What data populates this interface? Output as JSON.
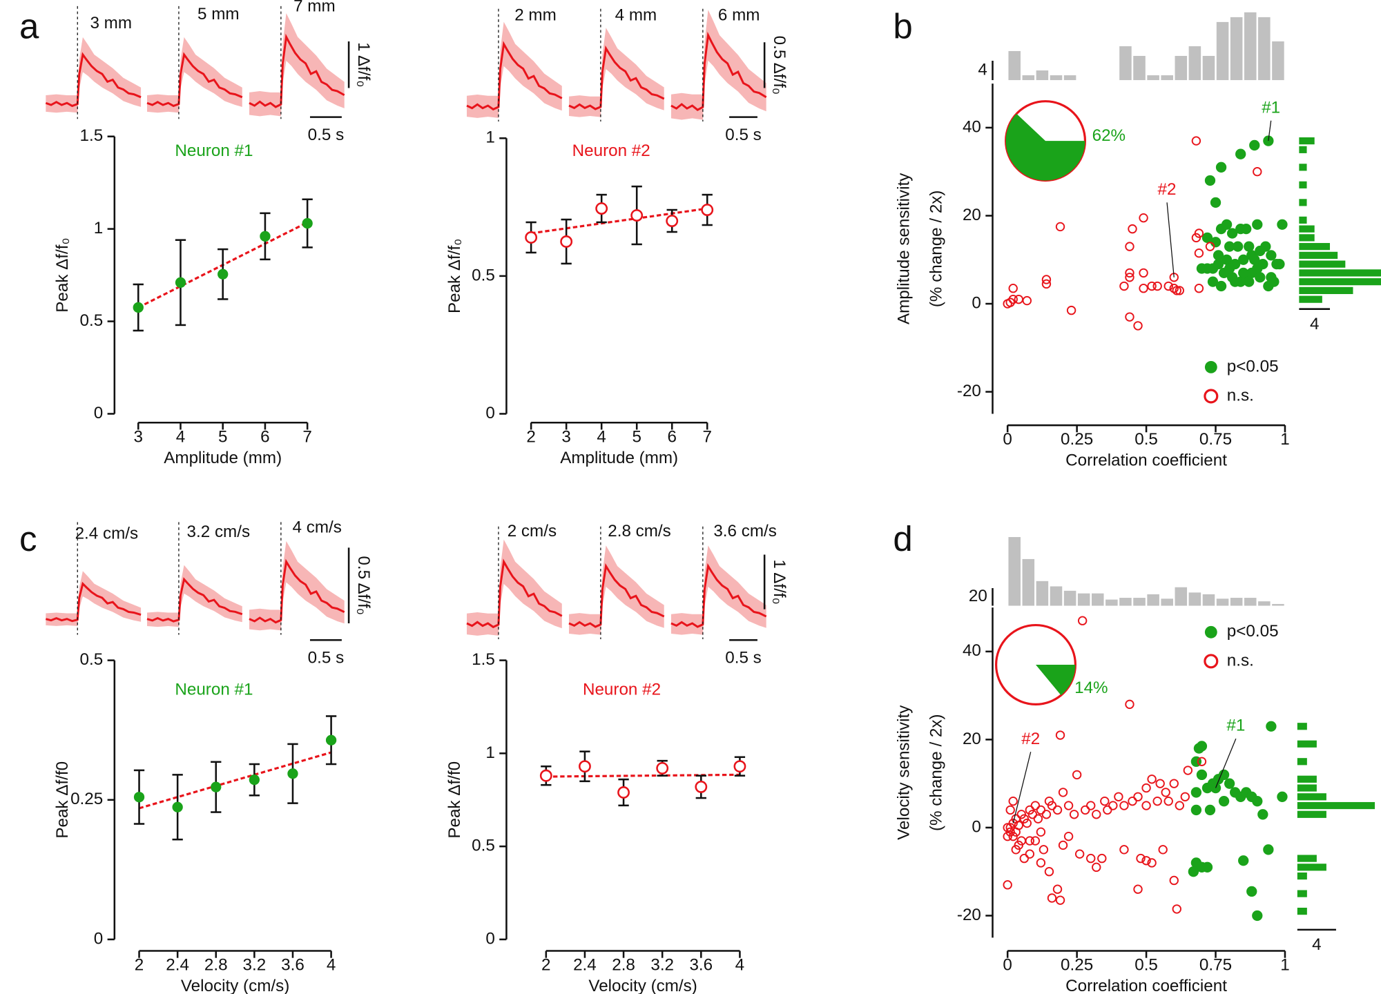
{
  "panel_labels": [
    "a",
    "b",
    "c",
    "d"
  ],
  "traces": [
    {
      "labels": [
        "3 mm",
        "5 mm",
        "7 mm"
      ],
      "amplitude_scale": "1 Δf/f₀",
      "time_scale": "0.5 s"
    },
    {
      "labels": [
        "2 mm",
        "4 mm",
        "6 mm"
      ],
      "amplitude_scale": "0.5 Δf/f₀",
      "time_scale": "0.5 s"
    },
    {
      "labels": [
        "2.4 cm/s",
        "3.2 cm/s",
        "4 cm/s"
      ],
      "amplitude_scale": "0.5 Δf/f₀",
      "time_scale": "0.5 s"
    },
    {
      "labels": [
        "2 cm/s",
        "2.8 cm/s",
        "3.6 cm/s"
      ],
      "amplitude_scale": "1 Δf/f₀",
      "time_scale": "0.5 s"
    }
  ],
  "chart_data": [
    {
      "type": "errorbar",
      "title": "Neuron #1",
      "title_color": "#1aa31a",
      "xlabel": "Amplitude (mm)",
      "ylabel": "Peak Δf/f₀",
      "x": [
        3,
        4,
        5,
        6,
        7
      ],
      "values": [
        0.575,
        0.71,
        0.755,
        0.96,
        1.03
      ],
      "errors": [
        0.125,
        0.23,
        0.135,
        0.125,
        0.13
      ],
      "color": "#1aa31a",
      "marker": "filled",
      "fit": {
        "x": [
          3,
          7
        ],
        "values": [
          0.575,
          1.035
        ],
        "color": "#e8141b"
      },
      "xlim": [
        3,
        7
      ],
      "xticks": [
        3,
        4,
        5,
        6,
        7
      ],
      "ylim": [
        0,
        1.5
      ],
      "yticks": [
        0,
        0.5,
        1,
        1.5
      ]
    },
    {
      "type": "errorbar",
      "title": "Neuron #2",
      "title_color": "#e8141b",
      "xlabel": "Amplitude (mm)",
      "ylabel": "Peak Δf/f₀",
      "x": [
        2,
        3,
        4,
        5,
        6,
        7
      ],
      "values": [
        0.64,
        0.625,
        0.745,
        0.72,
        0.7,
        0.74
      ],
      "errors": [
        0.055,
        0.08,
        0.05,
        0.105,
        0.04,
        0.055
      ],
      "color": "#e8141b",
      "marker": "open",
      "fit": {
        "x": [
          2,
          7
        ],
        "values": [
          0.655,
          0.745
        ],
        "color": "#e8141b"
      },
      "xlim": [
        2,
        7
      ],
      "xticks": [
        2,
        3,
        4,
        5,
        6,
        7
      ],
      "ylim": [
        0,
        1
      ],
      "yticks": [
        0,
        0.5,
        1
      ]
    },
    {
      "type": "scatter",
      "xlabel": "Correlation coefficient",
      "ylabel": [
        "Amplitude sensitivity",
        "(% change / 2x)"
      ],
      "xlim": [
        0,
        1
      ],
      "xticks": [
        0,
        0.25,
        0.5,
        0.75,
        1
      ],
      "ylim": [
        -25,
        50
      ],
      "yticks": [
        -20,
        0,
        20,
        40
      ],
      "series": [
        {
          "name": "p<0.05",
          "color": "#1aa31a",
          "marker": "filled",
          "x": [
            0.94,
            0.89,
            0.84,
            0.77,
            0.75,
            0.73,
            0.72,
            0.75,
            0.77,
            0.79,
            0.81,
            0.84,
            0.86,
            0.9,
            0.99,
            0.8,
            0.83,
            0.87,
            0.93,
            0.76,
            0.79,
            0.82,
            0.85,
            0.88,
            0.91,
            0.95,
            0.7,
            0.72,
            0.74,
            0.76,
            0.78,
            0.81,
            0.84,
            0.86,
            0.88,
            0.9,
            0.92,
            0.95,
            0.97,
            0.77,
            0.82,
            0.87,
            0.91,
            0.94,
            0.96,
            0.85,
            0.8,
            0.74,
            0.89,
            0.98
          ],
          "values": [
            37,
            36,
            34,
            31,
            23,
            28,
            15,
            14,
            17,
            18,
            16,
            17,
            17,
            18,
            18,
            13,
            13,
            13,
            13,
            11,
            10,
            9,
            10,
            11,
            12,
            11,
            8,
            8,
            8,
            9,
            7,
            6,
            5,
            6,
            7,
            8,
            9,
            6,
            9,
            4,
            5,
            5,
            6,
            4,
            5,
            7,
            8,
            5,
            10,
            9
          ]
        },
        {
          "name": "n.s.",
          "color": "#e8141b",
          "marker": "open",
          "x": [
            0,
            0.01,
            0.02,
            0.02,
            0.04,
            0.07,
            0.14,
            0.14,
            0.19,
            0.23,
            0.42,
            0.44,
            0.44,
            0.44,
            0.44,
            0.45,
            0.47,
            0.49,
            0.49,
            0.49,
            0.52,
            0.54,
            0.58,
            0.6,
            0.61,
            0.6,
            0.62,
            0.68,
            0.69,
            0.69,
            0.73,
            0.69,
            0.68,
            0.9
          ],
          "values": [
            0,
            0.3,
            1,
            3.5,
            1,
            0.7,
            5.5,
            4.5,
            17.5,
            -1.5,
            4,
            7,
            13,
            6,
            -3,
            17,
            -5,
            19.5,
            7,
            3.5,
            4,
            4,
            4,
            3.5,
            3,
            6,
            3,
            15,
            11.5,
            3.5,
            13,
            16,
            37,
            30
          ]
        }
      ],
      "annotations": [
        {
          "text": "#1",
          "color": "#1aa31a",
          "x": 0.94,
          "y": 37
        },
        {
          "text": "#2",
          "color": "#e8141b",
          "x": 0.6,
          "y": 6
        }
      ],
      "pie": {
        "value": 62,
        "value_label": "62%",
        "color": "#1aa31a",
        "outline": "#e8141b"
      },
      "top_histogram": {
        "color": "#c0c0c0",
        "bins": [
          0,
          0.05,
          0.1,
          0.15,
          0.2,
          0.25,
          0.3,
          0.35,
          0.4,
          0.45,
          0.5,
          0.55,
          0.6,
          0.65,
          0.7,
          0.75,
          0.8,
          0.85,
          0.9,
          0.95,
          1
        ],
        "counts": [
          6,
          1,
          2,
          1,
          1,
          0,
          0,
          0,
          7,
          5,
          1,
          1,
          5,
          7,
          5,
          12,
          13,
          14,
          13,
          8
        ],
        "scale": 4
      },
      "right_histogram": {
        "color": "#1aa31a",
        "bins": [
          0,
          2,
          4,
          6,
          8,
          10,
          12,
          14,
          16,
          18,
          20,
          22,
          24,
          26,
          28,
          30,
          32,
          34,
          36,
          38
        ],
        "counts": [
          3,
          7,
          11,
          11,
          6,
          5,
          4,
          2,
          2,
          1,
          0,
          1,
          0,
          1,
          0,
          1,
          0,
          1,
          2
        ],
        "scale": 4
      }
    },
    {
      "type": "errorbar",
      "title": "Neuron #1",
      "title_color": "#1aa31a",
      "xlabel": "Velocity (cm/s)",
      "ylabel": "Peak Δf/f0",
      "x": [
        2,
        2.4,
        2.8,
        3.2,
        3.6,
        4
      ],
      "values": [
        0.255,
        0.237,
        0.273,
        0.286,
        0.297,
        0.357
      ],
      "errors": [
        0.048,
        0.058,
        0.045,
        0.028,
        0.053,
        0.043
      ],
      "color": "#1aa31a",
      "marker": "filled",
      "fit": {
        "x": [
          2,
          4
        ],
        "values": [
          0.235,
          0.335
        ],
        "color": "#e8141b"
      },
      "xlim": [
        2,
        4
      ],
      "xticks": [
        2,
        2.4,
        2.8,
        3.2,
        3.6,
        4
      ],
      "ylim": [
        0,
        0.5
      ],
      "yticks": [
        0,
        0.25,
        0.5
      ]
    },
    {
      "type": "errorbar",
      "title": "Neuron #2",
      "title_color": "#e8141b",
      "xlabel": "Velocity (cm/s)",
      "ylabel": "Peak Δf/f0",
      "x": [
        2,
        2.4,
        2.8,
        3.2,
        3.6,
        4
      ],
      "values": [
        0.88,
        0.93,
        0.79,
        0.92,
        0.82,
        0.93
      ],
      "errors": [
        0.05,
        0.08,
        0.07,
        0.04,
        0.06,
        0.05
      ],
      "color": "#e8141b",
      "marker": "open",
      "fit": {
        "x": [
          2,
          4
        ],
        "values": [
          0.875,
          0.885
        ],
        "color": "#e8141b"
      },
      "xlim": [
        2,
        4
      ],
      "xticks": [
        2,
        2.4,
        2.8,
        3.2,
        3.6,
        4
      ],
      "ylim": [
        0,
        1.5
      ],
      "yticks": [
        0,
        0.5,
        1,
        1.5
      ]
    },
    {
      "type": "scatter",
      "xlabel": "Correlation coefficient",
      "ylabel": [
        "Velocity sensitivity",
        "(% change / 2x)"
      ],
      "xlim": [
        0,
        1
      ],
      "xticks": [
        0,
        0.25,
        0.5,
        0.75,
        1
      ],
      "ylim": [
        -25,
        50
      ],
      "yticks": [
        -20,
        0,
        20,
        40
      ],
      "series": [
        {
          "name": "p<0.05",
          "color": "#1aa31a",
          "marker": "filled",
          "x": [
            0.95,
            0.69,
            0.7,
            0.68,
            0.7,
            0.68,
            0.72,
            0.74,
            0.76,
            0.78,
            0.8,
            0.82,
            0.84,
            0.86,
            0.88,
            0.9,
            0.92,
            0.99,
            0.68,
            0.73,
            0.78,
            0.85,
            0.94,
            0.68,
            0.7,
            0.72,
            0.67,
            0.88,
            0.9,
            0.75
          ],
          "values": [
            23,
            18,
            18.5,
            15,
            12,
            8,
            9,
            10,
            11,
            12,
            10,
            8,
            7,
            8,
            7,
            6,
            3,
            7,
            4,
            4,
            6,
            -7.5,
            -5,
            -8,
            -9,
            -9,
            -10,
            -14.5,
            -20,
            9
          ]
        },
        {
          "name": "n.s.",
          "color": "#e8141b",
          "marker": "open",
          "x": [
            0.27,
            0.44,
            0.19,
            0.7,
            0.65,
            0.25,
            0.6,
            0.55,
            0.5,
            0.4,
            0.35,
            0.3,
            0.45,
            0.5,
            0.58,
            0.62,
            0.52,
            0.2,
            0.15,
            0.1,
            0.08,
            0.05,
            0.03,
            0.02,
            0.01,
            0,
            0.01,
            0.02,
            0.03,
            0.04,
            0.05,
            0.06,
            0.07,
            0.09,
            0.11,
            0.12,
            0.14,
            0.16,
            0.18,
            0.22,
            0.24,
            0.28,
            0.32,
            0.36,
            0.38,
            0.42,
            0.47,
            0.54,
            0.57,
            0.64,
            0.01,
            0.02,
            0,
            0,
            0.03,
            0.06,
            0.08,
            0.1,
            0.12,
            0.15,
            0.16,
            0.18,
            0.19,
            0.22,
            0.26,
            0.3,
            0.32,
            0.34,
            0.42,
            0.48,
            0.5,
            0.52,
            0.47,
            0.56,
            0.6,
            0.61,
            0.12,
            0.08,
            0.04,
            0.13,
            0.2
          ],
          "values": [
            47,
            28,
            21,
            15,
            13,
            12,
            10,
            10,
            9,
            7,
            6,
            5,
            6,
            5,
            6,
            5,
            11,
            8,
            6,
            5,
            4,
            3,
            2,
            1,
            0,
            0,
            -1,
            -2,
            -1,
            0.5,
            -3,
            2,
            1,
            3,
            2,
            4,
            3,
            5,
            4,
            5,
            3,
            4,
            3,
            4,
            5,
            5,
            7,
            6,
            8,
            7,
            4,
            6,
            -2,
            -13,
            -5,
            -7,
            -6,
            -3,
            -8,
            -10,
            -16,
            -14,
            -16.5,
            -2,
            -6,
            -7,
            -9,
            -7,
            -5,
            -7,
            -7.5,
            -8,
            -14,
            -5,
            -12,
            -18.5,
            -1,
            -3,
            -4,
            -5,
            -4
          ]
        }
      ],
      "annotations": [
        {
          "text": "#2",
          "color": "#e8141b",
          "x": 0.02,
          "y": 1
        },
        {
          "text": "#1",
          "color": "#1aa31a",
          "x": 0.75,
          "y": 9
        }
      ],
      "pie": {
        "value": 14,
        "value_label": "14%",
        "color": "#1aa31a",
        "outline": "#e8141b"
      },
      "top_histogram": {
        "color": "#c0c0c0",
        "bins": [
          0,
          0.05,
          0.1,
          0.15,
          0.2,
          0.25,
          0.3,
          0.35,
          0.4,
          0.45,
          0.5,
          0.55,
          0.6,
          0.65,
          0.7,
          0.75,
          0.8,
          0.85,
          0.9,
          0.95,
          1
        ],
        "counts": [
          78,
          53,
          28,
          22,
          17,
          14,
          14,
          7,
          9,
          9,
          13,
          8,
          21,
          15,
          13,
          8,
          9,
          9,
          5,
          2
        ],
        "scale": 20
      },
      "right_histogram": {
        "color": "#1aa31a",
        "bins": [
          -22,
          -20,
          -18,
          -16,
          -14,
          -12,
          -10,
          -8,
          -6,
          -4,
          -2,
          0,
          2,
          4,
          6,
          8,
          10,
          12,
          14,
          16,
          18,
          20,
          22,
          24
        ],
        "counts": [
          0,
          1,
          0,
          1,
          0,
          1,
          3,
          2,
          0,
          0,
          0,
          0,
          3,
          8,
          3,
          2,
          2,
          0,
          1,
          0,
          2,
          0,
          1
        ],
        "scale": 4
      }
    }
  ]
}
